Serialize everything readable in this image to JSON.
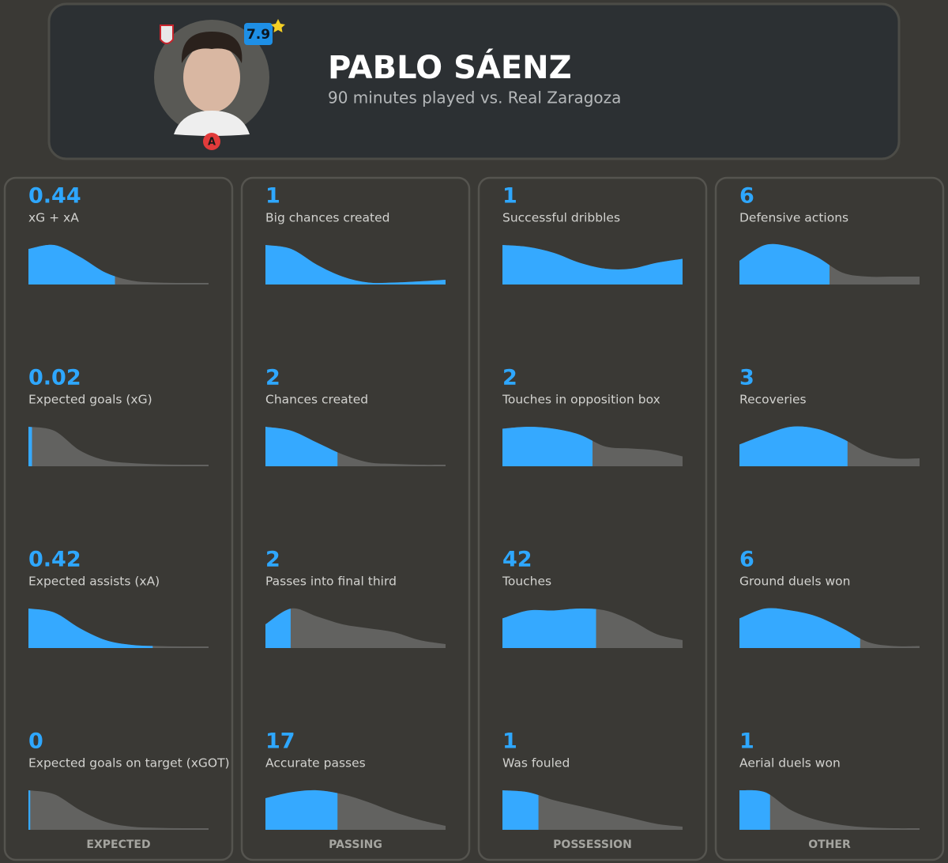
{
  "header": {
    "name": "PABLO SÁENZ",
    "subtitle": "90 minutes played vs. Real Zaragoza",
    "rating": 7.9,
    "badge": "A"
  },
  "columns": [
    {
      "title": "EXPECTED",
      "stats": [
        {
          "value": 0.44,
          "label": "xG + xA",
          "split": 48,
          "curve": [
            0.9,
            1,
            0.7,
            0.3,
            0.1,
            0.05,
            0.04,
            0.04
          ]
        },
        {
          "value": 0.02,
          "label": "Expected goals (xG)",
          "split": 2,
          "curve": [
            1,
            0.9,
            0.4,
            0.15,
            0.08,
            0.05,
            0.04,
            0.04
          ]
        },
        {
          "value": 0.42,
          "label": "Expected assists (xA)",
          "split": 69,
          "curve": [
            1,
            0.9,
            0.5,
            0.2,
            0.08,
            0.05,
            0.04,
            0.04
          ]
        },
        {
          "value": 0,
          "label": "Expected goals on target (xGOT)",
          "split": 1,
          "curve": [
            1,
            0.9,
            0.5,
            0.2,
            0.08,
            0.05,
            0.04,
            0.04
          ]
        }
      ]
    },
    {
      "title": "PASSING",
      "stats": [
        {
          "value": 1,
          "label": "Big chances created",
          "split": 100,
          "curve": [
            1,
            0.9,
            0.5,
            0.2,
            0.05,
            0.05,
            0.08,
            0.12
          ]
        },
        {
          "value": 2,
          "label": "Chances created",
          "split": 40,
          "curve": [
            1,
            0.9,
            0.6,
            0.3,
            0.1,
            0.06,
            0.04,
            0.04
          ]
        },
        {
          "value": 2,
          "label": "Passes into final third",
          "split": 14,
          "curve": [
            0.6,
            1,
            0.8,
            0.6,
            0.5,
            0.4,
            0.2,
            0.1
          ]
        },
        {
          "value": 17,
          "label": "Accurate passes",
          "split": 40,
          "curve": [
            0.8,
            0.95,
            1,
            0.9,
            0.7,
            0.45,
            0.25,
            0.1
          ]
        }
      ]
    },
    {
      "title": "POSSESSION",
      "stats": [
        {
          "value": 1,
          "label": "Successful dribbles",
          "split": 100,
          "curve": [
            1,
            0.95,
            0.8,
            0.55,
            0.4,
            0.4,
            0.55,
            0.65
          ]
        },
        {
          "value": 2,
          "label": "Touches in opposition box",
          "split": 50,
          "curve": [
            0.95,
            1,
            0.95,
            0.8,
            0.5,
            0.45,
            0.4,
            0.25
          ]
        },
        {
          "value": 42,
          "label": "Touches",
          "split": 52,
          "curve": [
            0.75,
            0.95,
            0.95,
            1,
            0.95,
            0.7,
            0.35,
            0.2
          ]
        },
        {
          "value": 1,
          "label": "Was fouled",
          "split": 20,
          "curve": [
            1,
            0.95,
            0.75,
            0.6,
            0.45,
            0.3,
            0.15,
            0.08
          ]
        }
      ]
    },
    {
      "title": "OTHER",
      "stats": [
        {
          "value": 6,
          "label": "Defensive actions",
          "split": 50,
          "curve": [
            0.6,
            1,
            0.95,
            0.7,
            0.3,
            0.2,
            0.2,
            0.2
          ]
        },
        {
          "value": 3,
          "label": "Recoveries",
          "split": 60,
          "curve": [
            0.55,
            0.8,
            1,
            0.95,
            0.7,
            0.35,
            0.2,
            0.2
          ]
        },
        {
          "value": 6,
          "label": "Ground duels won",
          "split": 67,
          "curve": [
            0.75,
            1,
            0.95,
            0.8,
            0.5,
            0.15,
            0.05,
            0.05
          ]
        },
        {
          "value": 1,
          "label": "Aerial duels won",
          "split": 17,
          "curve": [
            1,
            0.95,
            0.5,
            0.25,
            0.12,
            0.06,
            0.04,
            0.04
          ]
        }
      ]
    }
  ]
}
